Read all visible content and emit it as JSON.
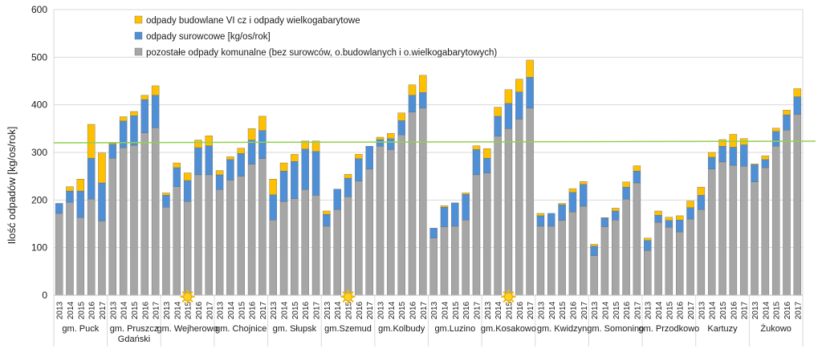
{
  "chart_data": {
    "type": "bar",
    "stacked": true,
    "title": "",
    "ylabel": "Ilość odpadów [kg/os/rok]",
    "xlabel": "",
    "ylim": [
      0,
      600
    ],
    "yticks": [
      0,
      100,
      200,
      300,
      400,
      500,
      600
    ],
    "grid": true,
    "legend_position": "top-left",
    "reference_line": {
      "value": 322,
      "color": "#8fd14f"
    },
    "colors": {
      "remaining": "#a6a6a6",
      "raw": "#4e8fd6",
      "bulky": "#ffc000"
    },
    "legend": [
      {
        "key": "bulky",
        "label": "odpady budowlane VI cz i odpady wielkogabarytowe"
      },
      {
        "key": "raw",
        "label": "odpady surowcowe [kg/os/rok]"
      },
      {
        "key": "remaining",
        "label": "pozostałe odpady komunalne (bez surowców, o.budowlanych i o.wielkogabarytowych)"
      }
    ],
    "groups": [
      {
        "name": "gm. Puck",
        "years": [
          "2013",
          "2014",
          "2015",
          "2016",
          "2017"
        ],
        "remaining": [
          172,
          195,
          163,
          202,
          156
        ],
        "raw": [
          21,
          24,
          56,
          86,
          80
        ],
        "bulky": [
          0,
          9,
          25,
          71,
          63
        ]
      },
      {
        "name": "gm. Pruszcz Gdański",
        "years": [
          "2013",
          "2014",
          "2015",
          "2016",
          "2017"
        ],
        "remaining": [
          288,
          310,
          315,
          341,
          352
        ],
        "raw": [
          29,
          56,
          62,
          70,
          68
        ],
        "bulky": [
          2,
          9,
          9,
          9,
          20
        ]
      },
      {
        "name": "gm. Wejherowo",
        "years": [
          "2013",
          "2014",
          "2015",
          "2016",
          "2017"
        ],
        "remaining": [
          185,
          228,
          197,
          253,
          253
        ],
        "raw": [
          25,
          40,
          44,
          57,
          61
        ],
        "bulky": [
          5,
          10,
          16,
          16,
          21
        ]
      },
      {
        "name": "gm. Chojnice",
        "years": [
          "2013",
          "2014",
          "2015",
          "2016",
          "2017"
        ],
        "remaining": [
          222,
          242,
          250,
          275,
          287
        ],
        "raw": [
          31,
          43,
          48,
          51,
          59
        ],
        "bulky": [
          9,
          6,
          11,
          24,
          30
        ]
      },
      {
        "name": "gm. Słupsk",
        "years": [
          "2013",
          "2014",
          "2015",
          "2016",
          "2017"
        ],
        "remaining": [
          158,
          197,
          203,
          222,
          210
        ],
        "raw": [
          53,
          64,
          78,
          85,
          92
        ],
        "bulky": [
          33,
          17,
          15,
          17,
          22
        ]
      },
      {
        "name": "gm.Szemud",
        "years": [
          "2013",
          "2014",
          "2015",
          "2016",
          "2017"
        ],
        "remaining": [
          145,
          180,
          207,
          240,
          265
        ],
        "raw": [
          25,
          43,
          39,
          47,
          48
        ],
        "bulky": [
          7,
          0,
          8,
          9,
          0
        ]
      },
      {
        "name": "gm.Kolbudy",
        "years": [
          "2013",
          "2014",
          "2015",
          "2016",
          "2017"
        ],
        "remaining": [
          313,
          306,
          337,
          385,
          393
        ],
        "raw": [
          14,
          23,
          30,
          35,
          33
        ],
        "bulky": [
          5,
          11,
          16,
          22,
          36
        ]
      },
      {
        "name": "gm.Luzino",
        "years": [
          "2013",
          "2014",
          "2015",
          "2016",
          "2017"
        ],
        "remaining": [
          120,
          144,
          145,
          158,
          253
        ],
        "raw": [
          21,
          41,
          49,
          54,
          53
        ],
        "bulky": [
          0,
          3,
          0,
          3,
          8
        ]
      },
      {
        "name": "gm.Kosakowo",
        "years": [
          "2013",
          "2014",
          "2015",
          "2016",
          "2017"
        ],
        "remaining": [
          257,
          334,
          350,
          370,
          393
        ],
        "raw": [
          31,
          42,
          53,
          57,
          65
        ],
        "bulky": [
          20,
          19,
          29,
          27,
          36
        ]
      },
      {
        "name": "gm. Kwidzyn",
        "years": [
          "2013",
          "2014",
          "2015",
          "2016",
          "2017"
        ],
        "remaining": [
          145,
          145,
          157,
          175,
          187
        ],
        "raw": [
          22,
          27,
          33,
          41,
          46
        ],
        "bulky": [
          5,
          0,
          3,
          8,
          6
        ]
      },
      {
        "name": "gm. Somonino",
        "years": [
          "2013",
          "2014",
          "2015",
          "2016",
          "2017"
        ],
        "remaining": [
          83,
          144,
          158,
          202,
          236
        ],
        "raw": [
          20,
          18,
          19,
          25,
          25
        ],
        "bulky": [
          4,
          1,
          6,
          11,
          11
        ]
      },
      {
        "name": "gm. Przodkowo",
        "years": [
          "2013",
          "2014",
          "2015",
          "2016",
          "2017"
        ],
        "remaining": [
          94,
          153,
          143,
          133,
          160
        ],
        "raw": [
          21,
          15,
          14,
          25,
          24
        ],
        "bulky": [
          5,
          9,
          7,
          9,
          14
        ]
      },
      {
        "name": "Kartuzy",
        "years": [
          "2013",
          "2014",
          "2015",
          "2016",
          "2017"
        ],
        "remaining": [
          180,
          265,
          280,
          273,
          271
        ],
        "raw": [
          30,
          25,
          33,
          38,
          45
        ],
        "bulky": [
          17,
          10,
          14,
          27,
          13
        ]
      },
      {
        "name": "Żukowo",
        "years": [
          "2013",
          "2014",
          "2015",
          "2016",
          "2017"
        ],
        "remaining": [
          238,
          268,
          313,
          347,
          380
        ],
        "raw": [
          36,
          17,
          31,
          32,
          37
        ],
        "bulky": [
          2,
          8,
          7,
          10,
          17
        ]
      }
    ],
    "sun_markers": [
      {
        "group": "gm. Wejherowo",
        "year": "2015"
      },
      {
        "group": "gm.Szemud",
        "year": "2015"
      },
      {
        "group": "gm.Kosakowo",
        "year": "2015"
      }
    ]
  }
}
